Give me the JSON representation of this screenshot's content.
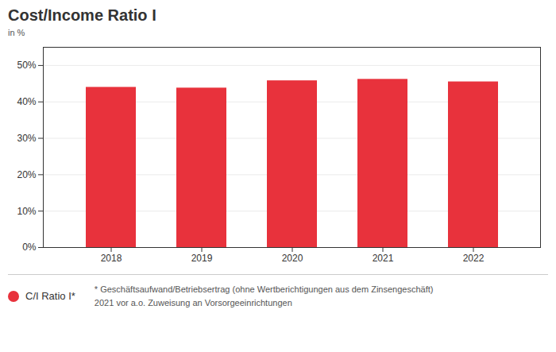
{
  "chart_data": {
    "type": "bar",
    "title": "Cost/Income Ratio I",
    "ylabel": "in %",
    "categories": [
      "2018",
      "2019",
      "2020",
      "2021",
      "2022"
    ],
    "series": [
      {
        "name": "C/I Ratio I*",
        "color": "#E8323C",
        "values": [
          44.0,
          43.8,
          45.8,
          46.2,
          45.5
        ]
      }
    ],
    "ylim": [
      0,
      55
    ],
    "yticks": [
      {
        "value": 0,
        "label": "0%"
      },
      {
        "value": 10,
        "label": "10%"
      },
      {
        "value": 20,
        "label": "20%"
      },
      {
        "value": 30,
        "label": "30%"
      },
      {
        "value": 40,
        "label": "40%"
      },
      {
        "value": 50,
        "label": "50%"
      }
    ],
    "grid": true,
    "legend": "bottom left",
    "annotations": [
      "* Geschäftsaufwand/Betriebsertrag (ohne Wertberichtigungen aus dem Zinsengeschäft)",
      "2021 vor a.o. Zuweisung an Vorsorgeeinrichtungen"
    ]
  }
}
